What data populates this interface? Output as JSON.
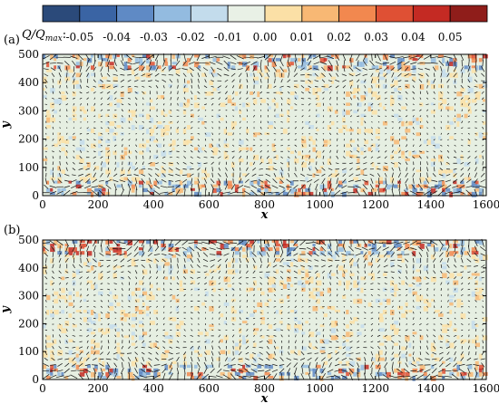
{
  "colorbar": {
    "label": "Q/Q",
    "label_sub": "max",
    "label_suffix": ":",
    "colors": [
      "#2b4a7a",
      "#3a64a4",
      "#5f8ac5",
      "#93bbe0",
      "#c3dcec",
      "#e9f1e6",
      "#fbe0a6",
      "#f8b874",
      "#f2884f",
      "#df5034",
      "#c42a23",
      "#8f1d1a"
    ],
    "tick_labels": [
      "-0.05",
      "-0.04",
      "-0.03",
      "-0.02",
      "-0.01",
      "0.00",
      "0.01",
      "0.02",
      "0.03",
      "0.04",
      "0.05"
    ]
  },
  "chart_data": [
    {
      "type": "heatmap",
      "panel_label": "(a)",
      "xlabel": "x",
      "ylabel": "y",
      "xlim": [
        0,
        1600
      ],
      "ylim": [
        0,
        500
      ],
      "xticks": [
        0,
        200,
        400,
        600,
        800,
        1000,
        1200,
        1400,
        1600
      ],
      "yticks": [
        0,
        100,
        200,
        300,
        400,
        500
      ],
      "xtick_labels": [
        "0",
        "200",
        "400",
        "600",
        "800",
        "1000",
        "1200",
        "1400",
        "1600"
      ],
      "ytick_labels": [
        "0",
        "100",
        "200",
        "300",
        "400",
        "500"
      ],
      "value_range": [
        -0.05,
        0.05
      ],
      "overlay": "velocity vectors"
    },
    {
      "type": "heatmap",
      "panel_label": "(b)",
      "xlabel": "x",
      "ylabel": "y",
      "xlim": [
        0,
        1600
      ],
      "ylim": [
        0,
        500
      ],
      "xticks": [
        0,
        200,
        400,
        600,
        800,
        1000,
        1200,
        1400,
        1600
      ],
      "yticks": [
        0,
        100,
        200,
        300,
        400,
        500
      ],
      "xtick_labels": [
        "0",
        "200",
        "400",
        "600",
        "800",
        "1000",
        "1200",
        "1400",
        "1600"
      ],
      "ytick_labels": [
        "0",
        "100",
        "200",
        "300",
        "400",
        "500"
      ],
      "value_range": [
        -0.05,
        0.05
      ],
      "overlay": "velocity vectors"
    }
  ]
}
